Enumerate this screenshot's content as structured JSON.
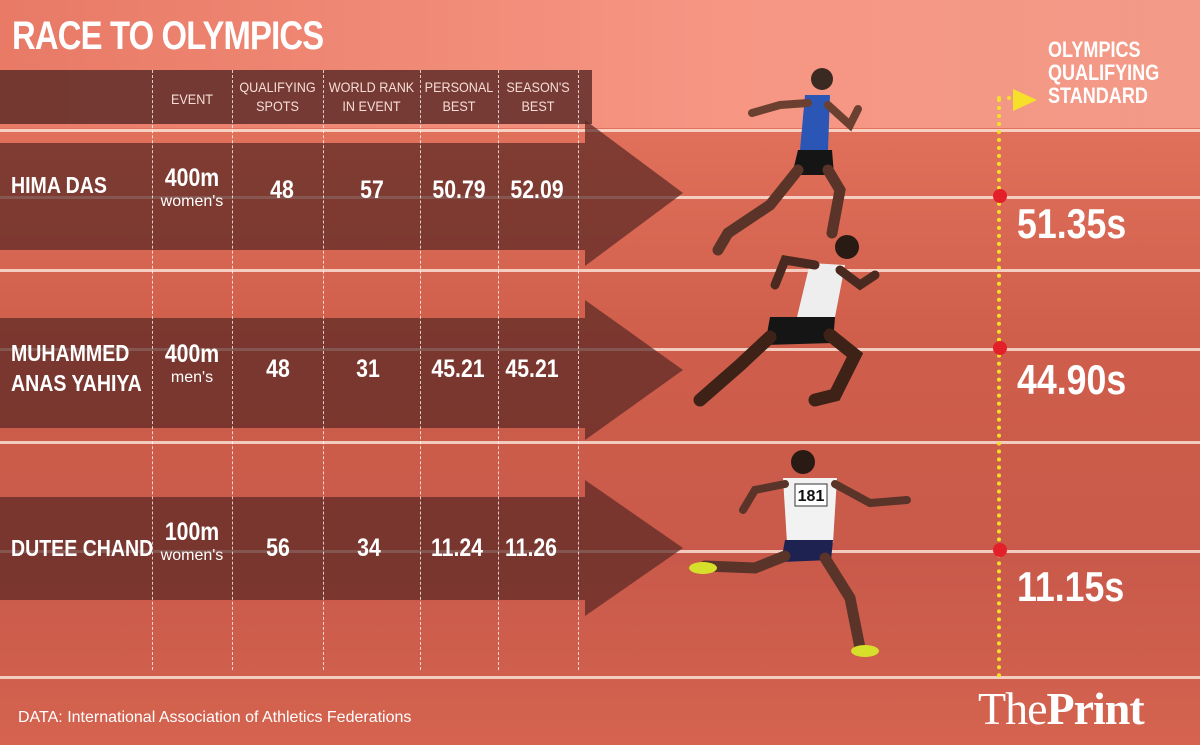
{
  "title": "RACE TO OLYMPICS",
  "headers": {
    "event": "EVENT",
    "qualifying_spots": "QUALIFYING\nSPOTS",
    "world_rank": "WORLD RANK\nIN EVENT",
    "personal_best": "PERSONAL\nBEST",
    "seasons_best": "SEASON'S\nBEST"
  },
  "rows": [
    {
      "name": "HIMA DAS",
      "event": "400m",
      "event_category": "women's",
      "qualifying_spots": "48",
      "world_rank": "57",
      "personal_best": "50.79",
      "seasons_best": "52.09",
      "standard": "51.35s"
    },
    {
      "name": "MUHAMMED\nANAS YAHIYA",
      "event": "400m",
      "event_category": "men's",
      "qualifying_spots": "48",
      "world_rank": "31",
      "personal_best": "45.21",
      "seasons_best": "45.21",
      "standard": "44.90s"
    },
    {
      "name": "DUTEE CHAND",
      "event": "100m",
      "event_category": "women's",
      "qualifying_spots": "56",
      "world_rank": "34",
      "personal_best": "11.24",
      "seasons_best": "11.26",
      "standard": "11.15s"
    }
  ],
  "standard_title": "OLYMPICS\nQUALIFYING\nSTANDARD",
  "bib_number": "181",
  "source": "DATA: International Association of Athletics Federations",
  "logo": {
    "part1": "The",
    "part2": "Print"
  },
  "colors": {
    "track": "#cf5f4b",
    "arrow": "#5a2824",
    "marker_dot": "#e3202a",
    "dotted_line": "#f6e02a"
  }
}
